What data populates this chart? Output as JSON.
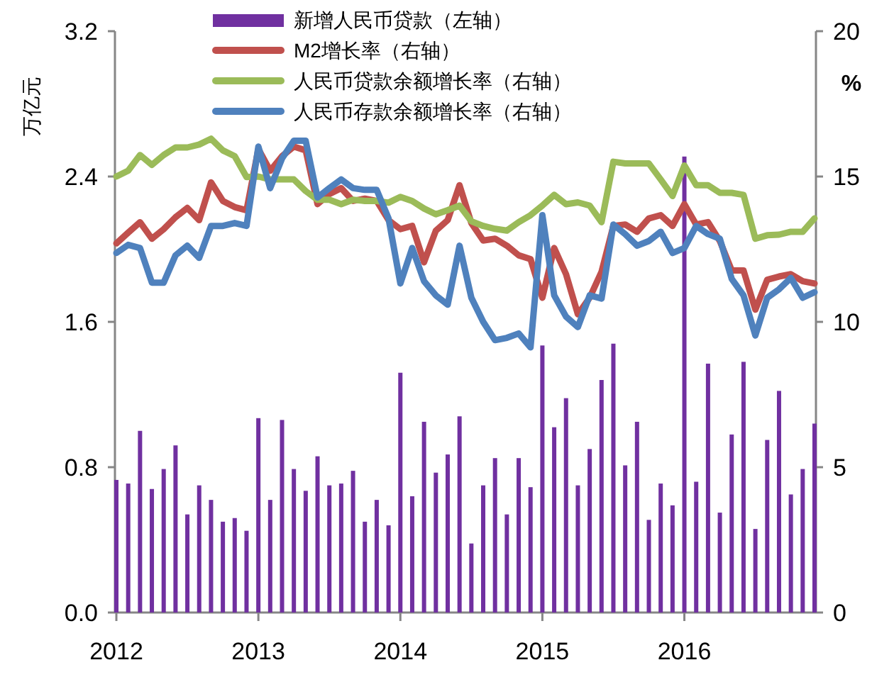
{
  "chart_data": {
    "type": "bar",
    "ylabel": "万亿元",
    "y2label": "%",
    "legend": "top",
    "line_style": "solid",
    "marker": "none",
    "x": [
      "2012-01",
      "2012-02",
      "2012-03",
      "2012-04",
      "2012-05",
      "2012-06",
      "2012-07",
      "2012-08",
      "2012-09",
      "2012-10",
      "2012-11",
      "2012-12",
      "2013-01",
      "2013-02",
      "2013-03",
      "2013-04",
      "2013-05",
      "2013-06",
      "2013-07",
      "2013-08",
      "2013-09",
      "2013-10",
      "2013-11",
      "2013-12",
      "2014-01",
      "2014-02",
      "2014-03",
      "2014-04",
      "2014-05",
      "2014-06",
      "2014-07",
      "2014-08",
      "2014-09",
      "2014-10",
      "2014-11",
      "2014-12",
      "2015-01",
      "2015-02",
      "2015-03",
      "2015-04",
      "2015-05",
      "2015-06",
      "2015-07",
      "2015-08",
      "2015-09",
      "2015-10",
      "2015-11",
      "2015-12",
      "2016-01",
      "2016-02",
      "2016-03",
      "2016-04",
      "2016-05",
      "2016-06",
      "2016-07",
      "2016-08",
      "2016-09",
      "2016-10",
      "2016-11",
      "2016-12"
    ],
    "xlim": [
      "2012-01",
      "2016-12"
    ],
    "xticks": [
      {
        "value": "2012-01",
        "label": "2012"
      },
      {
        "value": "2013-01",
        "label": "2013"
      },
      {
        "value": "2014-01",
        "label": "2014"
      },
      {
        "value": "2015-01",
        "label": "2015"
      },
      {
        "value": "2016-01",
        "label": "2016"
      }
    ],
    "ylim": [
      0,
      3.2
    ],
    "yticks": [
      {
        "value": 0,
        "label": "0.0"
      },
      0.8,
      1.6,
      2.4,
      3.2
    ],
    "y2lim": [
      0,
      20
    ],
    "y2ticks": [
      0,
      5,
      10,
      15,
      20
    ],
    "series": [
      {
        "name": "新增人民币贷款（左轴）",
        "axis": "y",
        "color": "#7030a0",
        "values": [
          0.73,
          0.71,
          1.0,
          0.68,
          0.79,
          0.92,
          0.54,
          0.7,
          0.62,
          0.5,
          0.52,
          0.45,
          1.07,
          0.62,
          1.06,
          0.79,
          0.67,
          0.86,
          0.7,
          0.71,
          0.78,
          0.5,
          0.62,
          0.48,
          1.32,
          0.64,
          1.05,
          0.77,
          0.87,
          1.08,
          0.38,
          0.7,
          0.85,
          0.54,
          0.85,
          0.69,
          1.47,
          1.02,
          1.18,
          0.7,
          0.9,
          1.28,
          1.48,
          0.81,
          1.05,
          0.51,
          0.71,
          0.59,
          2.51,
          0.72,
          1.37,
          0.55,
          0.98,
          1.38,
          0.46,
          0.95,
          1.22,
          0.65,
          0.79,
          1.04
        ]
      },
      {
        "name": "M2增长率（右轴）",
        "type": "line",
        "axis": "y2",
        "color": "#c0504d",
        "values": [
          12.7,
          13.07,
          13.43,
          12.86,
          13.19,
          13.6,
          13.92,
          13.5,
          14.8,
          14.16,
          13.95,
          13.84,
          15.95,
          15.2,
          15.7,
          16.03,
          15.9,
          14.05,
          14.4,
          14.6,
          14.16,
          14.24,
          14.16,
          13.5,
          13.19,
          13.3,
          12.05,
          13.14,
          13.5,
          14.7,
          13.4,
          12.8,
          12.86,
          12.62,
          12.29,
          12.16,
          10.83,
          12.54,
          11.64,
          10.26,
          10.83,
          11.72,
          13.3,
          13.35,
          13.1,
          13.56,
          13.67,
          13.3,
          14.05,
          13.35,
          13.43,
          12.78,
          11.77,
          11.77,
          10.42,
          11.45,
          11.56,
          11.64,
          11.4,
          11.32
        ]
      },
      {
        "name": "人民币贷款余额增长率（右轴）",
        "type": "line",
        "axis": "y2",
        "color": "#9bbb59",
        "values": [
          15.0,
          15.2,
          15.74,
          15.4,
          15.74,
          16.0,
          16.0,
          16.1,
          16.3,
          15.9,
          15.7,
          14.98,
          15.0,
          14.9,
          14.9,
          14.9,
          14.5,
          14.2,
          14.2,
          14.05,
          14.2,
          14.16,
          14.16,
          14.1,
          14.3,
          14.16,
          13.9,
          13.7,
          13.84,
          14.0,
          13.46,
          13.3,
          13.2,
          13.14,
          13.43,
          13.67,
          14.0,
          14.37,
          14.05,
          14.11,
          14.0,
          13.43,
          15.51,
          15.45,
          15.45,
          15.45,
          14.9,
          14.33,
          15.38,
          14.7,
          14.7,
          14.44,
          14.44,
          14.37,
          12.86,
          12.98,
          13.0,
          13.1,
          13.1,
          13.56
        ]
      },
      {
        "name": "人民币存款余额增长率（右轴）",
        "type": "line",
        "axis": "y2",
        "color": "#4f81bd",
        "values": [
          12.37,
          12.65,
          12.54,
          11.35,
          11.35,
          12.29,
          12.62,
          12.2,
          13.3,
          13.3,
          13.4,
          13.3,
          16.03,
          14.6,
          15.62,
          16.23,
          16.23,
          14.28,
          14.6,
          14.9,
          14.6,
          14.54,
          14.54,
          13.56,
          11.32,
          12.54,
          11.4,
          10.91,
          10.59,
          12.62,
          10.83,
          10.0,
          9.37,
          9.45,
          9.6,
          9.12,
          13.67,
          10.91,
          10.18,
          9.82,
          10.91,
          10.8,
          13.35,
          13.02,
          12.62,
          12.78,
          13.1,
          12.37,
          12.54,
          13.3,
          13.02,
          12.86,
          11.48,
          10.91,
          9.53,
          10.83,
          11.12,
          11.51,
          10.83,
          11.02
        ]
      }
    ]
  }
}
